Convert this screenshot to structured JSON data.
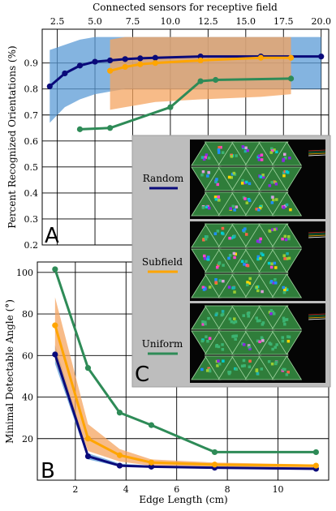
{
  "colors": {
    "random": "#0a0a7a",
    "subfield": "#ffa500",
    "uniform": "#2e8b57",
    "random_band": "#5b9bd5",
    "subfield_band": "#f4a460",
    "inset_bg": "#bdbdbd"
  },
  "panel_labels": {
    "a": "A",
    "b": "B",
    "c": "C"
  },
  "legend": {
    "random": "Random",
    "subfield": "Subfield",
    "uniform": "Uniform"
  },
  "chart_data": [
    {
      "type": "line",
      "panel": "A",
      "ylabel": "Percent Recognized Orientations (%)",
      "top_xlabel": "Connected sensors for receptive field",
      "x_ticks": [
        2.5,
        5.0,
        7.5,
        10.0,
        12.5,
        15.0,
        17.5,
        20.0
      ],
      "x_tick_labels": [
        "2.5",
        "5.0",
        "7.5",
        "10.0",
        "12.5",
        "15.0",
        "17.5",
        "20.0"
      ],
      "y_ticks": [
        0.2,
        0.3,
        0.4,
        0.5,
        0.6,
        0.7,
        0.8,
        0.9
      ],
      "y_tick_labels": [
        "0.2",
        "0.3",
        "0.4",
        "0.5",
        "0.6",
        "0.7",
        "0.8",
        "0.9"
      ],
      "xlim": [
        1.5,
        20.5
      ],
      "ylim": [
        0.2,
        1.03
      ],
      "grid": true,
      "series": [
        {
          "name": "Random",
          "x": [
            2,
            3,
            4,
            5,
            6,
            7,
            8,
            9,
            12,
            16,
            20
          ],
          "y": [
            0.81,
            0.86,
            0.89,
            0.905,
            0.91,
            0.915,
            0.918,
            0.92,
            0.925,
            0.925,
            0.925
          ],
          "band_upper": [
            0.95,
            0.97,
            0.99,
            1.0,
            1.0,
            1.0,
            1.0,
            1.0,
            1.0,
            1.0,
            1.0
          ],
          "band_lower": [
            0.67,
            0.73,
            0.76,
            0.78,
            0.79,
            0.8,
            0.8,
            0.8,
            0.8,
            0.8,
            0.8
          ]
        },
        {
          "name": "Subfield",
          "x": [
            6,
            7,
            8,
            9,
            12,
            16,
            18
          ],
          "y": [
            0.87,
            0.885,
            0.895,
            0.9,
            0.91,
            0.92,
            0.92
          ],
          "band_upper": [
            0.99,
            1.0,
            1.0,
            1.0,
            1.0,
            1.0,
            1.0
          ],
          "band_lower": [
            0.72,
            0.73,
            0.74,
            0.75,
            0.76,
            0.77,
            0.78
          ]
        },
        {
          "name": "Uniform",
          "x": [
            4,
            6,
            10,
            12,
            13,
            18
          ],
          "y": [
            0.645,
            0.65,
            0.73,
            0.83,
            0.835,
            0.84
          ]
        }
      ]
    },
    {
      "type": "line",
      "panel": "B",
      "xlabel": "Edge Length (cm)",
      "ylabel": "Minimal Detectable Angle (°)",
      "x_ticks": [
        2,
        4,
        6,
        8,
        10
      ],
      "x_tick_labels": [
        "2",
        "4",
        "6",
        "8",
        "10"
      ],
      "y_ticks": [
        20,
        40,
        60,
        80,
        100
      ],
      "y_tick_labels": [
        "20",
        "40",
        "60",
        "80",
        "100"
      ],
      "xlim": [
        0.5,
        12
      ],
      "ylim": [
        0,
        105
      ],
      "grid": true,
      "series": [
        {
          "name": "Random",
          "x": [
            1.2,
            2.5,
            3.75,
            5.0,
            7.5,
            11.5
          ],
          "y": [
            60.5,
            11.5,
            7.0,
            6.5,
            6.0,
            5.5
          ],
          "band_upper": [
            65,
            13,
            8,
            7,
            6.5,
            6
          ],
          "band_lower": [
            56,
            10,
            6.5,
            6,
            5.5,
            5
          ]
        },
        {
          "name": "Subfield",
          "x": [
            1.2,
            2.5,
            3.75,
            5.0,
            7.5,
            11.5
          ],
          "y": [
            74.5,
            20.0,
            12.0,
            8.5,
            7.5,
            7.0
          ],
          "band_upper": [
            88,
            27,
            15,
            10,
            8.5,
            7.5
          ],
          "band_lower": [
            58,
            14,
            9,
            7,
            6.5,
            6
          ]
        },
        {
          "name": "Uniform",
          "x": [
            1.2,
            2.5,
            3.75,
            5.0,
            7.5,
            11.5
          ],
          "y": [
            101.5,
            54.0,
            32.5,
            26.5,
            13.5,
            13.5
          ]
        }
      ]
    }
  ]
}
